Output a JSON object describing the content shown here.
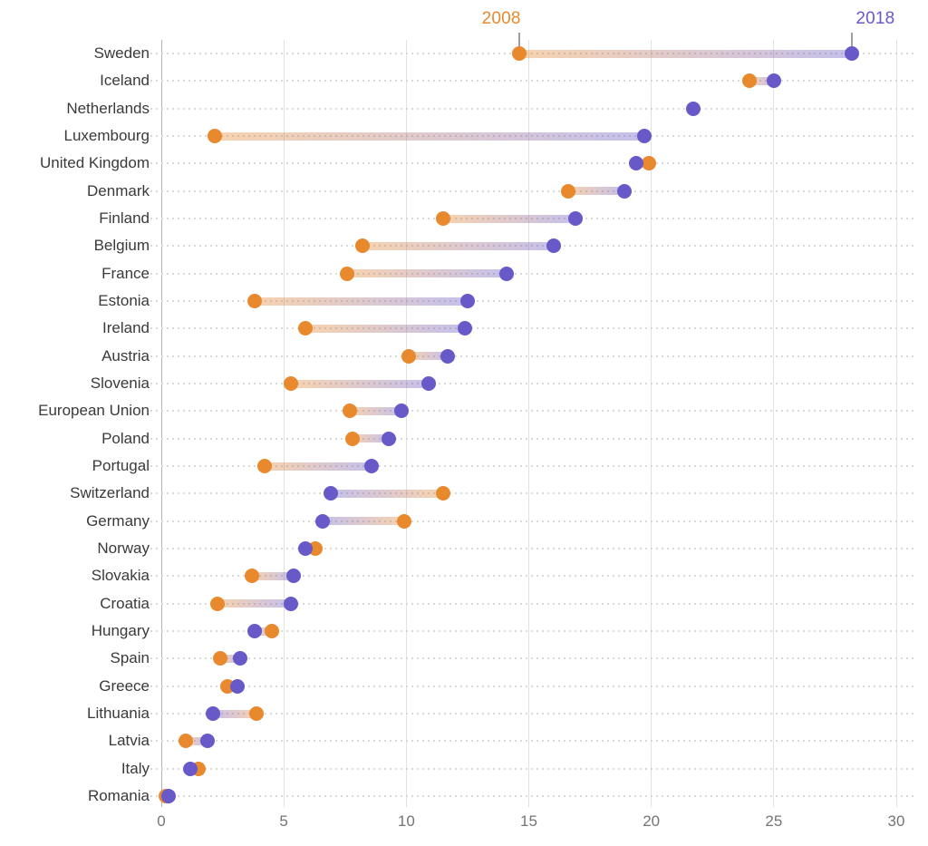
{
  "legend": {
    "start": {
      "label": "2008",
      "color": "#E8892E"
    },
    "end": {
      "label": "2018",
      "color": "#6759C8"
    }
  },
  "colors": {
    "dot_2008": "#E8892E",
    "dot_2018": "#6759C8",
    "band_2008": "rgba(232,137,46,0.38)",
    "band_2018": "rgba(103,89,200,0.38)",
    "gridline": "#e2e2e2",
    "zero_line": "#b3b3b3",
    "row_guide": "#d9d9d9",
    "country_label": "#3a3a3a",
    "axis_label": "#757575",
    "legend_tick": "#9e9e9e"
  },
  "chart_data": {
    "type": "scatter",
    "variant": "dumbbell",
    "title": "",
    "xlabel": "",
    "ylabel": "",
    "xlim": [
      0,
      30
    ],
    "xticks": [
      0,
      5,
      10,
      15,
      20,
      25,
      30
    ],
    "grid": "vertical gridlines with dotted horizontal row guides",
    "legend_position": "top, anchored above first-row dots",
    "categories": [
      "Sweden",
      "Iceland",
      "Netherlands",
      "Luxembourg",
      "United Kingdom",
      "Denmark",
      "Finland",
      "Belgium",
      "France",
      "Estonia",
      "Ireland",
      "Austria",
      "Slovenia",
      "European Union",
      "Poland",
      "Portugal",
      "Switzerland",
      "Germany",
      "Norway",
      "Slovakia",
      "Croatia",
      "Hungary",
      "Spain",
      "Greece",
      "Lithuania",
      "Latvia",
      "Italy",
      "Romania"
    ],
    "series": [
      {
        "name": "2008",
        "color": "#E8892E",
        "values": [
          14.6,
          24.0,
          null,
          2.2,
          19.9,
          16.6,
          11.5,
          8.2,
          7.6,
          3.8,
          5.9,
          10.1,
          5.3,
          7.7,
          7.8,
          4.2,
          11.5,
          9.9,
          6.3,
          3.7,
          2.3,
          4.5,
          2.4,
          2.7,
          3.9,
          1.0,
          1.5,
          0.2
        ]
      },
      {
        "name": "2018",
        "color": "#6759C8",
        "values": [
          28.2,
          25.0,
          21.7,
          19.7,
          19.4,
          18.9,
          16.9,
          16.0,
          14.1,
          12.5,
          12.4,
          11.7,
          10.9,
          9.8,
          9.3,
          8.6,
          6.9,
          6.6,
          5.9,
          5.4,
          5.3,
          3.8,
          3.2,
          3.1,
          2.1,
          1.9,
          1.2,
          0.3
        ]
      }
    ]
  }
}
